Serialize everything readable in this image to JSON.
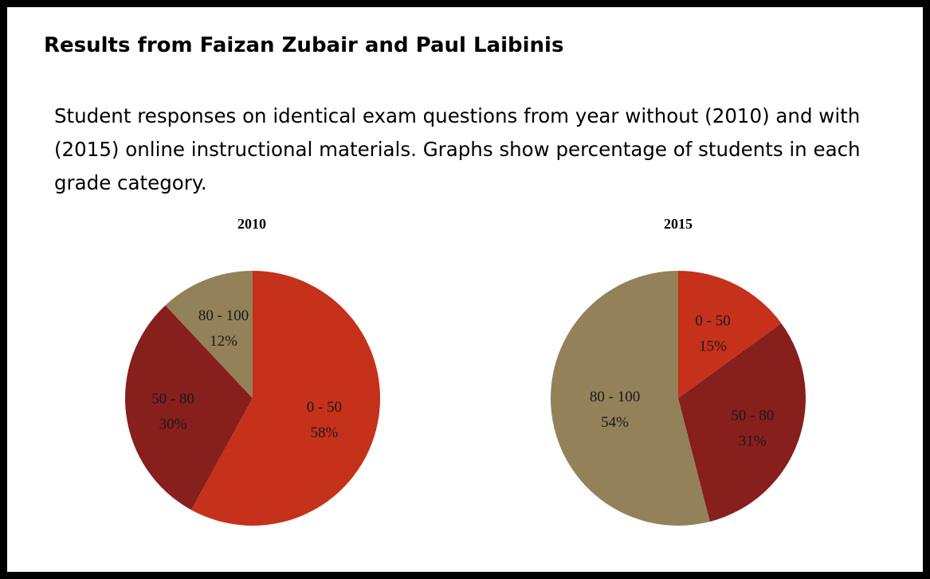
{
  "heading": "Results from Faizan Zubair and Paul Laibinis",
  "description": "Student responses on identical exam questions from year without (2010) and with (2015) online instructional materials. Graphs show percentage of students in each grade category.",
  "colors": {
    "0 - 50": "#c5311a",
    "50 - 80": "#871f1c",
    "80 - 100": "#938159"
  },
  "chart_data": [
    {
      "type": "pie",
      "title": "2010",
      "slices": [
        {
          "label": "0 - 50",
          "value": 58,
          "value_label": "58%"
        },
        {
          "label": "50 - 80",
          "value": 30,
          "value_label": "30%"
        },
        {
          "label": "80 - 100",
          "value": 12,
          "value_label": "12%"
        }
      ]
    },
    {
      "type": "pie",
      "title": "2015",
      "slices": [
        {
          "label": "0 - 50",
          "value": 15,
          "value_label": "15%"
        },
        {
          "label": "50 - 80",
          "value": 31,
          "value_label": "31%"
        },
        {
          "label": "80 - 100",
          "value": 54,
          "value_label": "54%"
        }
      ]
    }
  ]
}
